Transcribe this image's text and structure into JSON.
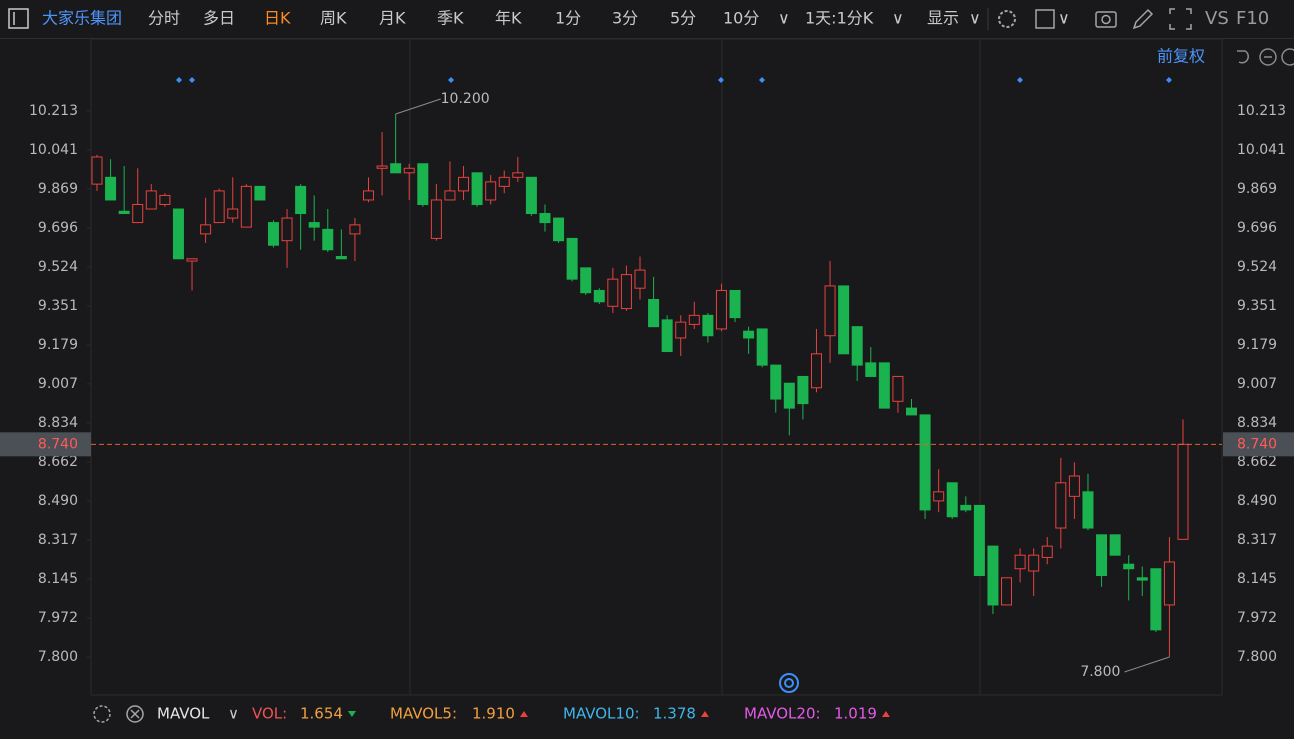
{
  "toolbar": {
    "title": "大家乐集团",
    "periods": [
      "分时",
      "多日",
      "日K",
      "周K",
      "月K",
      "季K",
      "年K",
      "1分",
      "3分",
      "5分",
      "10分"
    ],
    "interval": "1天:1分K",
    "display": "显示",
    "vs": "VS",
    "f10": "F10",
    "adjust": "前复权"
  },
  "indicator": {
    "name": "MAVOL",
    "items": [
      {
        "name": "VOL:",
        "value": "1.654"
      },
      {
        "name": "MAVOL5:",
        "value": "1.910"
      },
      {
        "name": "MAVOL10:",
        "value": "1.378"
      },
      {
        "name": "MAVOL20:",
        "value": "1.019"
      }
    ]
  },
  "chart_data": {
    "type": "candlestick",
    "up_color": "#e8413e",
    "down_color": "#1bb34f",
    "open": [
      9.89,
      9.92,
      9.77,
      9.72,
      9.78,
      9.8,
      9.78,
      9.55,
      9.67,
      9.72,
      9.74,
      9.7,
      9.88,
      9.72,
      9.64,
      9.88,
      9.72,
      9.69,
      9.57,
      9.67,
      9.82,
      9.96,
      9.98,
      9.94,
      9.98,
      9.65,
      9.82,
      9.86,
      9.94,
      9.82,
      9.88,
      9.92,
      9.92,
      9.76,
      9.74,
      9.65,
      9.52,
      9.42,
      9.35,
      9.34,
      9.43,
      9.38,
      9.29,
      9.21,
      9.27,
      9.31,
      9.25,
      9.42,
      9.24,
      9.25,
      9.09,
      9.01,
      9.04,
      8.99,
      9.22,
      9.44,
      9.26,
      9.1,
      9.1,
      8.93,
      8.9,
      8.87,
      8.49,
      8.57,
      8.47,
      8.47,
      8.29,
      8.03,
      8.19,
      8.18,
      8.24,
      8.37,
      8.51,
      8.53,
      8.34,
      8.34,
      8.21,
      8.15,
      8.19,
      8.03,
      8.32
    ],
    "high": [
      10.02,
      10.0,
      9.97,
      9.96,
      9.89,
      9.85,
      9.78,
      9.56,
      9.83,
      9.87,
      9.92,
      9.89,
      9.88,
      9.73,
      9.78,
      9.89,
      9.84,
      9.78,
      9.69,
      9.74,
      9.92,
      10.12,
      10.2,
      9.98,
      9.98,
      9.89,
      9.99,
      9.97,
      9.94,
      9.93,
      9.95,
      10.01,
      9.92,
      9.8,
      9.74,
      9.65,
      9.52,
      9.43,
      9.52,
      9.53,
      9.57,
      9.48,
      9.31,
      9.31,
      9.37,
      9.32,
      9.45,
      9.42,
      9.26,
      9.25,
      9.09,
      9.01,
      9.04,
      9.25,
      9.55,
      9.44,
      9.26,
      9.17,
      9.1,
      9.04,
      8.94,
      8.87,
      8.63,
      8.57,
      8.51,
      8.47,
      8.29,
      8.15,
      8.28,
      8.28,
      8.33,
      8.68,
      8.66,
      8.61,
      8.34,
      8.34,
      8.25,
      8.2,
      8.19,
      8.33,
      8.85
    ],
    "low": [
      9.86,
      9.82,
      9.76,
      9.72,
      9.78,
      9.79,
      9.56,
      9.42,
      9.63,
      9.72,
      9.72,
      9.7,
      9.82,
      9.61,
      9.52,
      9.6,
      9.64,
      9.59,
      9.56,
      9.55,
      9.81,
      9.84,
      9.94,
      9.82,
      9.79,
      9.64,
      9.82,
      9.82,
      9.79,
      9.8,
      9.85,
      9.9,
      9.75,
      9.68,
      9.63,
      9.46,
      9.4,
      9.36,
      9.32,
      9.33,
      9.38,
      9.26,
      9.15,
      9.13,
      9.25,
      9.19,
      9.24,
      9.28,
      9.14,
      9.08,
      8.88,
      8.78,
      8.85,
      8.97,
      9.1,
      9.14,
      9.02,
      9.04,
      8.9,
      8.88,
      8.87,
      8.41,
      8.44,
      8.41,
      8.44,
      8.16,
      7.99,
      8.03,
      8.13,
      8.07,
      8.21,
      8.28,
      8.41,
      8.36,
      8.11,
      8.25,
      8.05,
      8.07,
      7.91,
      7.8,
      8.32
    ],
    "close": [
      10.01,
      9.82,
      9.76,
      9.8,
      9.86,
      9.84,
      9.56,
      9.56,
      9.71,
      9.86,
      9.78,
      9.88,
      9.82,
      9.62,
      9.74,
      9.76,
      9.7,
      9.6,
      9.56,
      9.71,
      9.86,
      9.97,
      9.94,
      9.96,
      9.8,
      9.82,
      9.86,
      9.92,
      9.8,
      9.9,
      9.92,
      9.94,
      9.76,
      9.72,
      9.64,
      9.47,
      9.41,
      9.37,
      9.47,
      9.49,
      9.51,
      9.26,
      9.15,
      9.28,
      9.31,
      9.22,
      9.42,
      9.3,
      9.21,
      9.09,
      8.94,
      8.9,
      8.92,
      9.14,
      9.44,
      9.14,
      9.09,
      9.04,
      8.9,
      9.04,
      8.87,
      8.45,
      8.53,
      8.42,
      8.45,
      8.16,
      8.03,
      8.15,
      8.25,
      8.25,
      8.29,
      8.57,
      8.6,
      8.37,
      8.16,
      8.25,
      8.19,
      8.14,
      7.92,
      8.22,
      8.74
    ],
    "ylim": [
      7.632,
      10.527
    ],
    "yticks": [
      10.213,
      10.041,
      9.869,
      9.696,
      9.524,
      9.351,
      9.179,
      9.007,
      8.834,
      8.662,
      {
        "value": 8.49,
        "label": "8.490"
      },
      8.317,
      8.145,
      7.972,
      {
        "value": 7.8,
        "label": "7.800"
      }
    ],
    "current_price": {
      "value": 8.74,
      "label": "8.740"
    },
    "annotations": [
      {
        "value": 10.2,
        "label": "10.200"
      },
      {
        "value": 7.8,
        "label": "7.800"
      }
    ]
  }
}
